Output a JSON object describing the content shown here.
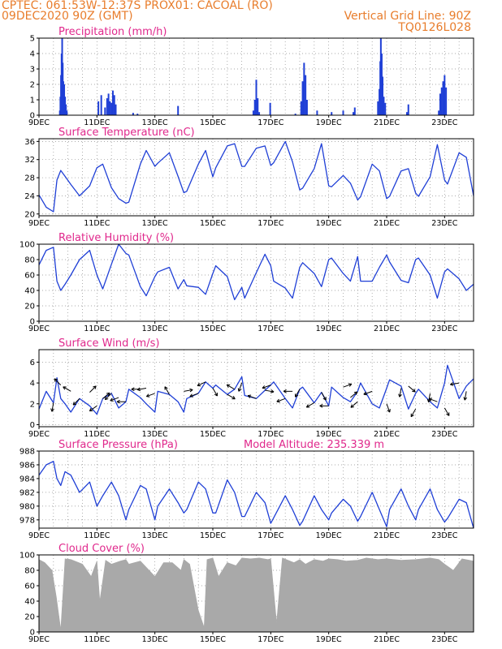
{
  "header": {
    "line1": "CPTEC:   061:53W-12:37S   PROX01: CACOAL (RO)",
    "line2": "09DEC2020 90Z (GMT)",
    "grid_note": "Vertical Grid Line: 90Z",
    "run_id": "TQ0126L028"
  },
  "colors": {
    "header": "#e87d2c",
    "title": "#e0288c",
    "series": "#1f3fd6",
    "cloud": "#a9a9a9",
    "grid": "#8f8f8f"
  },
  "chart_data": [
    {
      "id": "precipitation",
      "type": "bar",
      "title": "Precipitation (mm/h)",
      "x_tick_labels": [
        "9DEC",
        "11DEC",
        "13DEC",
        "15DEC",
        "17DEC",
        "19DEC",
        "21DEC",
        "23DEC"
      ],
      "xlim_days": [
        9,
        24
      ],
      "ylim": [
        0,
        5
      ],
      "yticks": [
        0,
        1,
        2,
        3,
        4,
        5
      ],
      "bars": [
        [
          9.72,
          0.3
        ],
        [
          9.74,
          1.2
        ],
        [
          9.76,
          2.6
        ],
        [
          9.78,
          4.0
        ],
        [
          9.8,
          5.0
        ],
        [
          9.82,
          3.4
        ],
        [
          9.84,
          2.2
        ],
        [
          9.87,
          2.0
        ],
        [
          9.9,
          1.2
        ],
        [
          9.93,
          0.7
        ],
        [
          9.96,
          0.3
        ],
        [
          11.05,
          0.9
        ],
        [
          11.15,
          1.3
        ],
        [
          11.28,
          0.5
        ],
        [
          11.35,
          1.1
        ],
        [
          11.4,
          1.4
        ],
        [
          11.45,
          0.9
        ],
        [
          11.5,
          0.8
        ],
        [
          11.55,
          1.6
        ],
        [
          11.6,
          1.3
        ],
        [
          11.65,
          0.7
        ],
        [
          12.25,
          0.15
        ],
        [
          12.4,
          0.1
        ],
        [
          13.8,
          0.6
        ],
        [
          16.4,
          0.3
        ],
        [
          16.45,
          1.0
        ],
        [
          16.5,
          2.3
        ],
        [
          16.55,
          1.1
        ],
        [
          16.6,
          0.2
        ],
        [
          16.98,
          0.8
        ],
        [
          17.85,
          0.1
        ],
        [
          18.05,
          0.9
        ],
        [
          18.1,
          2.2
        ],
        [
          18.15,
          3.4
        ],
        [
          18.2,
          2.6
        ],
        [
          18.25,
          1.0
        ],
        [
          18.6,
          0.3
        ],
        [
          19.1,
          0.2
        ],
        [
          19.5,
          0.3
        ],
        [
          19.85,
          0.2
        ],
        [
          19.9,
          0.5
        ],
        [
          20.7,
          0.9
        ],
        [
          20.75,
          1.7
        ],
        [
          20.78,
          3.5
        ],
        [
          20.8,
          5.0
        ],
        [
          20.83,
          4.0
        ],
        [
          20.86,
          2.5
        ],
        [
          20.9,
          1.2
        ],
        [
          20.95,
          0.8
        ],
        [
          21.7,
          0.2
        ],
        [
          21.75,
          0.7
        ],
        [
          22.8,
          0.3
        ],
        [
          22.85,
          1.4
        ],
        [
          22.9,
          1.8
        ],
        [
          22.95,
          2.2
        ],
        [
          23.0,
          2.6
        ],
        [
          23.05,
          1.8
        ]
      ]
    },
    {
      "id": "surface-temperature",
      "type": "line",
      "title": "Surface Temperature (nC)",
      "x_tick_labels": [
        "9DEC",
        "11DEC",
        "13DEC",
        "15DEC",
        "17DEC",
        "19DEC",
        "21DEC",
        "23DEC"
      ],
      "xlim_days": [
        9,
        24
      ],
      "ylim": [
        19.6,
        36.6
      ],
      "yticks": [
        20,
        24,
        28,
        32,
        36
      ],
      "x": [
        9,
        9.25,
        9.5,
        9.62,
        9.75,
        9.9,
        10.1,
        10.4,
        10.75,
        11,
        11.2,
        11.5,
        11.75,
        12,
        12.1,
        12.5,
        12.7,
        13,
        13.1,
        13.5,
        13.8,
        14,
        14.1,
        14.5,
        14.75,
        15,
        15.1,
        15.5,
        15.75,
        16,
        16.1,
        16.5,
        16.8,
        17,
        17.1,
        17.5,
        17.75,
        18,
        18.1,
        18.5,
        18.75,
        19,
        19.1,
        19.5,
        19.75,
        20,
        20.1,
        20.5,
        20.75,
        21,
        21.1,
        21.5,
        21.75,
        22,
        22.1,
        22.5,
        22.75,
        23,
        23.1,
        23.5,
        23.75,
        24
      ],
      "y": [
        24.2,
        21.5,
        20.5,
        27.5,
        29.6,
        28.3,
        26.5,
        24.0,
        26.2,
        30.2,
        31.0,
        25.8,
        23.4,
        22.4,
        22.6,
        31.0,
        34.0,
        30.5,
        31.2,
        33.5,
        28.3,
        24.7,
        25.0,
        31.0,
        34.0,
        28.2,
        30.2,
        35.0,
        35.5,
        30.5,
        30.5,
        34.5,
        35.0,
        30.7,
        31.3,
        36.0,
        31.5,
        25.3,
        25.7,
        30.0,
        35.5,
        26.2,
        26.0,
        28.5,
        26.8,
        23.1,
        23.8,
        31.0,
        29.5,
        23.4,
        23.9,
        29.5,
        30.0,
        24.6,
        23.9,
        28.2,
        35.3,
        27.5,
        26.6,
        33.5,
        32.5,
        24.0
      ]
    },
    {
      "id": "relative-humidity",
      "type": "line",
      "title": "Relative Humidity (%)",
      "x_tick_labels": [
        "9DEC",
        "11DEC",
        "13DEC",
        "15DEC",
        "17DEC",
        "19DEC",
        "21DEC",
        "23DEC"
      ],
      "xlim_days": [
        9,
        24
      ],
      "ylim": [
        0,
        100
      ],
      "yticks": [
        0,
        20,
        40,
        60,
        80,
        100
      ],
      "x": [
        9,
        9.25,
        9.5,
        9.62,
        9.75,
        9.9,
        10.1,
        10.4,
        10.75,
        11,
        11.2,
        11.5,
        11.75,
        12,
        12.1,
        12.5,
        12.7,
        13,
        13.1,
        13.5,
        13.8,
        14,
        14.1,
        14.5,
        14.75,
        15,
        15.1,
        15.5,
        15.75,
        16,
        16.1,
        16.5,
        16.8,
        17,
        17.1,
        17.5,
        17.75,
        18,
        18.1,
        18.5,
        18.75,
        19,
        19.1,
        19.5,
        19.75,
        20,
        20.1,
        20.5,
        20.75,
        21,
        21.1,
        21.5,
        21.75,
        22,
        22.1,
        22.5,
        22.75,
        23,
        23.1,
        23.5,
        23.75,
        24
      ],
      "y": [
        73,
        92,
        96,
        52,
        40,
        48,
        60,
        80,
        92,
        60,
        42,
        74,
        100,
        88,
        86,
        45,
        33,
        58,
        64,
        70,
        42,
        54,
        46,
        44,
        35,
        62,
        72,
        58,
        28,
        44,
        30,
        63,
        87,
        72,
        52,
        43,
        30,
        70,
        76,
        62,
        45,
        80,
        82,
        62,
        52,
        84,
        52,
        52,
        70,
        86,
        77,
        53,
        50,
        80,
        82,
        60,
        30,
        64,
        68,
        55,
        40,
        48
      ]
    },
    {
      "id": "surface-wind",
      "type": "line",
      "title": "Surface Wind (m/s)",
      "x_tick_labels": [
        "9DEC",
        "11DEC",
        "13DEC",
        "15DEC",
        "17DEC",
        "19DEC",
        "21DEC",
        "23DEC"
      ],
      "xlim_days": [
        9,
        24
      ],
      "ylim": [
        -0.2,
        7.2
      ],
      "yticks": [
        0,
        2,
        4,
        6
      ],
      "x": [
        9,
        9.25,
        9.5,
        9.62,
        9.75,
        9.9,
        10.1,
        10.4,
        10.75,
        11,
        11.2,
        11.5,
        11.75,
        12,
        12.1,
        12.5,
        12.7,
        13,
        13.1,
        13.5,
        13.8,
        14,
        14.1,
        14.5,
        14.75,
        15,
        15.1,
        15.5,
        15.75,
        16,
        16.1,
        16.5,
        16.8,
        17,
        17.1,
        17.5,
        17.75,
        18,
        18.1,
        18.5,
        18.75,
        19,
        19.1,
        19.5,
        19.75,
        20,
        20.1,
        20.5,
        20.75,
        21,
        21.1,
        21.5,
        21.75,
        22,
        22.1,
        22.5,
        22.75,
        23,
        23.1,
        23.5,
        23.75,
        24
      ],
      "y": [
        1.5,
        3.2,
        2.1,
        4.5,
        2.5,
        2.0,
        1.2,
        2.5,
        1.8,
        1.0,
        2.5,
        3.0,
        1.6,
        2.2,
        3.4,
        2.6,
        2.0,
        1.2,
        3.2,
        2.9,
        2.2,
        1.2,
        2.5,
        3.0,
        4.1,
        3.5,
        3.8,
        2.9,
        3.4,
        4.6,
        2.8,
        2.5,
        3.3,
        3.8,
        4.1,
        2.5,
        1.6,
        3.4,
        3.6,
        2.1,
        3.1,
        1.8,
        3.6,
        2.6,
        2.2,
        3.2,
        4.0,
        2.0,
        1.6,
        3.5,
        4.3,
        3.7,
        1.5,
        3.0,
        3.4,
        2.2,
        1.6,
        4.0,
        5.7,
        2.5,
        3.7,
        4.4
      ],
      "barbs_x": [
        9.5,
        9.75,
        10.1,
        10.4,
        10.75,
        11,
        11.2,
        11.5,
        11.75,
        12,
        12.5,
        12.7,
        13,
        13.5,
        14,
        14.5,
        14.75,
        15,
        15.5,
        15.75,
        16,
        16.5,
        16.8,
        17,
        17.5,
        17.75,
        18,
        18.5,
        18.75,
        19,
        19.5,
        19.75,
        20,
        20.5,
        21,
        21.5,
        21.75,
        22,
        22.5,
        22.75,
        23,
        23.5,
        23.75
      ],
      "barbs_speed": [
        2.1,
        3.8,
        3.2,
        2.5,
        3.1,
        1.8,
        2.5,
        3.0,
        2.6,
        2.2,
        3.4,
        3.5,
        3.0,
        2.9,
        3.2,
        3.0,
        4.1,
        3.5,
        2.9,
        3.4,
        4.0,
        2.5,
        3.3,
        3.8,
        2.5,
        3.2,
        3.4,
        2.1,
        3.1,
        1.8,
        3.6,
        2.6,
        2.2,
        3.2,
        2.0,
        3.5,
        3.7,
        1.5,
        3.0,
        2.2,
        1.6,
        4.0,
        3.2
      ],
      "barbs_dir_deg": [
        260,
        135,
        150,
        225,
        45,
        215,
        40,
        225,
        200,
        180,
        180,
        190,
        200,
        120,
        10,
        200,
        205,
        300,
        330,
        150,
        250,
        160,
        350,
        200,
        200,
        180,
        240,
        210,
        300,
        180,
        20,
        40,
        220,
        200,
        290,
        260,
        320,
        240,
        260,
        160,
        300,
        190,
        260
      ]
    },
    {
      "id": "surface-pressure",
      "type": "line",
      "title": "Surface Pressure (hPa)",
      "annotation": "Model Altitude: 235.339 m",
      "x_tick_labels": [
        "9DEC",
        "11DEC",
        "13DEC",
        "15DEC",
        "17DEC",
        "19DEC",
        "21DEC",
        "23DEC"
      ],
      "xlim_days": [
        9,
        24
      ],
      "ylim": [
        976.8,
        988
      ],
      "yticks": [
        978,
        980,
        982,
        984,
        986,
        988
      ],
      "x": [
        9,
        9.25,
        9.5,
        9.62,
        9.75,
        9.9,
        10.1,
        10.4,
        10.75,
        11,
        11.2,
        11.5,
        11.75,
        12,
        12.1,
        12.5,
        12.7,
        13,
        13.1,
        13.5,
        13.8,
        14,
        14.1,
        14.5,
        14.75,
        15,
        15.1,
        15.5,
        15.75,
        16,
        16.1,
        16.5,
        16.8,
        17,
        17.1,
        17.5,
        17.75,
        18,
        18.1,
        18.5,
        18.75,
        19,
        19.1,
        19.5,
        19.75,
        20,
        20.1,
        20.5,
        20.75,
        21,
        21.1,
        21.5,
        21.75,
        22,
        22.1,
        22.5,
        22.75,
        23,
        23.1,
        23.5,
        23.75,
        24
      ],
      "y": [
        984.5,
        986.0,
        986.5,
        984.0,
        983.0,
        985.0,
        984.5,
        982.0,
        983.5,
        980.0,
        981.5,
        983.5,
        981.5,
        978.0,
        979.5,
        983.0,
        982.5,
        978.0,
        980.0,
        982.5,
        980.5,
        979.0,
        979.5,
        983.5,
        982.5,
        979.0,
        979.0,
        983.8,
        982.0,
        978.5,
        978.5,
        982.0,
        980.5,
        977.5,
        978.3,
        981.5,
        979.5,
        977.2,
        977.8,
        981.5,
        979.5,
        978.0,
        979.0,
        981.0,
        980.0,
        977.8,
        978.5,
        982.0,
        979.5,
        977.0,
        979.5,
        982.5,
        980.0,
        978.0,
        979.5,
        982.5,
        979.5,
        977.7,
        978.2,
        981.0,
        980.5,
        976.8
      ]
    },
    {
      "id": "cloud-cover",
      "type": "area",
      "title": "Cloud Cover (%)",
      "x_tick_labels": [
        "9DEC",
        "11DEC",
        "13DEC",
        "15DEC",
        "17DEC",
        "19DEC",
        "21DEC",
        "23DEC"
      ],
      "xlim_days": [
        9,
        24
      ],
      "ylim": [
        0,
        100
      ],
      "yticks": [
        0,
        20,
        40,
        60,
        80,
        100
      ],
      "x": [
        9,
        9.2,
        9.45,
        9.6,
        9.75,
        9.9,
        10.1,
        10.5,
        10.8,
        11,
        11.1,
        11.3,
        11.5,
        11.8,
        12,
        12.1,
        12.5,
        13,
        13.3,
        13.6,
        13.9,
        14,
        14.2,
        14.5,
        14.7,
        14.8,
        15,
        15.2,
        15.5,
        15.8,
        16,
        16.3,
        16.6,
        16.9,
        17,
        17.2,
        17.4,
        17.8,
        18,
        18.2,
        18.5,
        18.8,
        19,
        19.3,
        19.6,
        20,
        20.3,
        20.7,
        21,
        21.5,
        22,
        22.5,
        22.8,
        23,
        23.3,
        23.6,
        24
      ],
      "y": [
        94,
        90,
        80,
        45,
        3,
        95,
        94,
        88,
        72,
        92,
        40,
        93,
        88,
        92,
        94,
        88,
        92,
        72,
        90,
        90,
        80,
        94,
        88,
        28,
        6,
        94,
        96,
        72,
        90,
        86,
        96,
        95,
        96,
        94,
        95,
        12,
        96,
        90,
        94,
        88,
        94,
        92,
        95,
        94,
        92,
        93,
        96,
        94,
        95,
        93,
        94,
        96,
        94,
        88,
        80,
        95,
        92
      ]
    }
  ]
}
